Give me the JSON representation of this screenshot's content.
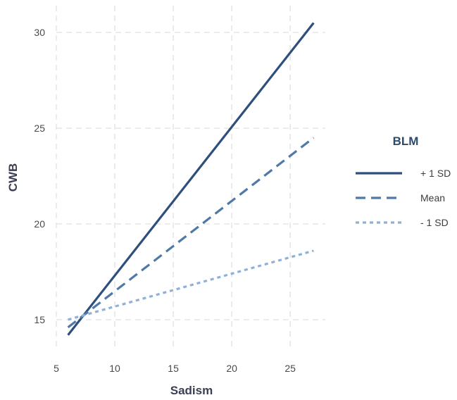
{
  "chart_data": {
    "type": "line",
    "title": "",
    "xlabel": "Sadism",
    "ylabel": "CWB",
    "xlim": [
      5,
      28
    ],
    "ylim": [
      13.6,
      31.4
    ],
    "xticks": [
      5,
      10,
      15,
      20,
      25
    ],
    "yticks": [
      15,
      20,
      25,
      30
    ],
    "grid": true,
    "legend": {
      "title": "BLM",
      "placement": "right"
    },
    "series": [
      {
        "name": "+ 1 SD",
        "x": [
          6,
          27
        ],
        "y": [
          14.2,
          30.5
        ],
        "color": "#2e4f7c",
        "style": "solid"
      },
      {
        "name": "Mean",
        "x": [
          6,
          27
        ],
        "y": [
          14.6,
          24.5
        ],
        "color": "#4f79a6",
        "style": "dashed"
      },
      {
        "name": "- 1 SD",
        "x": [
          6,
          27
        ],
        "y": [
          15.0,
          18.6
        ],
        "color": "#8fb0d8",
        "style": "dotted"
      }
    ]
  }
}
